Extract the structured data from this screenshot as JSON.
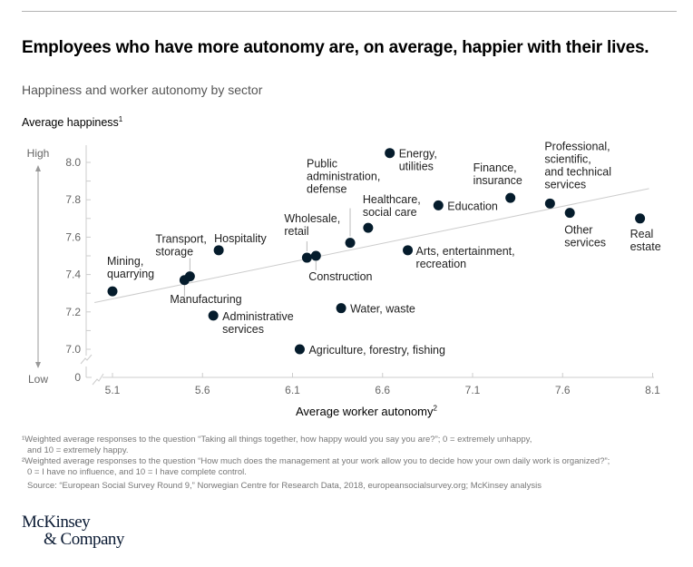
{
  "header": {
    "title": "Employees who have more autonomy are, on average, happier with their lives.",
    "subtitle": "Happiness and worker autonomy by sector"
  },
  "chart_data": {
    "type": "scatter",
    "title": "Happiness and worker autonomy by sector",
    "xlabel": "Average worker autonomy",
    "xlabel_footnote": "2",
    "ylabel": "Average happiness",
    "ylabel_footnote": "1",
    "y_scale_labels": {
      "high": "High",
      "low": "Low"
    },
    "xlim": [
      5.0,
      8.1
    ],
    "ylim": [
      6.9,
      8.1
    ],
    "x_ticks": [
      5.1,
      5.6,
      6.1,
      6.6,
      7.1,
      7.6,
      8.1
    ],
    "x_tick_labels": [
      "5.1",
      "5.6",
      "6.1",
      "6.6",
      "7.1",
      "7.6",
      "8.1"
    ],
    "y_ticks": [
      7.0,
      7.2,
      7.4,
      7.6,
      7.8,
      8.0
    ],
    "y_tick_labels": [
      "7.0",
      "7.2",
      "7.4",
      "7.6",
      "7.8",
      "8.0"
    ],
    "y_minor_ticks": [
      7.1,
      7.3,
      7.5,
      7.7,
      7.9
    ],
    "axis_break_labels": {
      "y_origin": "0"
    },
    "grid": false,
    "legend": "none",
    "trendline": {
      "x": [
        5.0,
        8.08
      ],
      "y": [
        7.25,
        7.86
      ]
    },
    "points": [
      {
        "label": [
          "Mining,",
          "quarrying"
        ],
        "x": 5.1,
        "y": 7.31
      },
      {
        "label": [
          "Manufacturing"
        ],
        "x": 5.5,
        "y": 7.37
      },
      {
        "label": [
          "Transport,",
          "storage"
        ],
        "x": 5.53,
        "y": 7.39
      },
      {
        "label": [
          "Hospitality"
        ],
        "x": 5.69,
        "y": 7.53
      },
      {
        "label": [
          "Administrative",
          "services"
        ],
        "x": 5.66,
        "y": 7.18
      },
      {
        "label": [
          "Agriculture, forestry, fishing"
        ],
        "x": 6.14,
        "y": 7.0
      },
      {
        "label": [
          "Wholesale,",
          "retail"
        ],
        "x": 6.18,
        "y": 7.49
      },
      {
        "label": [
          "Construction"
        ],
        "x": 6.23,
        "y": 7.5
      },
      {
        "label": [
          "Public",
          "administration,",
          "defense"
        ],
        "x": 6.42,
        "y": 7.57
      },
      {
        "label": [
          "Water, waste"
        ],
        "x": 6.37,
        "y": 7.22
      },
      {
        "label": [
          "Healthcare,",
          "social care"
        ],
        "x": 6.52,
        "y": 7.65
      },
      {
        "label": [
          "Energy,",
          "utilities"
        ],
        "x": 6.64,
        "y": 8.05
      },
      {
        "label": [
          "Arts, entertainment,",
          "recreation"
        ],
        "x": 6.74,
        "y": 7.53
      },
      {
        "label": [
          "Education"
        ],
        "x": 6.91,
        "y": 7.77
      },
      {
        "label": [
          "Finance,",
          "insurance"
        ],
        "x": 7.31,
        "y": 7.81
      },
      {
        "label": [
          "Professional,",
          "scientific,",
          "and technical",
          "services"
        ],
        "x": 7.53,
        "y": 7.78
      },
      {
        "label": [
          "Other",
          "services"
        ],
        "x": 7.64,
        "y": 7.73
      },
      {
        "label": [
          "Real",
          "estate"
        ],
        "x": 8.03,
        "y": 7.7
      }
    ],
    "colors": {
      "point": "#051c2c",
      "trendline": "#cccccc",
      "axis": "#cccccc"
    }
  },
  "footnotes": {
    "note1_line1": "¹Weighted average responses to the question “Taking all things together, how happy would you say you are?”; 0 = extremely unhappy,",
    "note1_line2": "and 10 = extremely happy.",
    "note2_line1": "²Weighted average responses to the question “How much does the management at your work allow you to decide how your own daily work is organized?”;",
    "note2_line2": "0 = I have no influence, and 10 = I have complete control.",
    "source": "Source: “European Social Survey Round 9,” Norwegian Centre for Research Data, 2018, europeansocialsurvey.org; McKinsey analysis"
  },
  "logo": {
    "line1": "McKinsey",
    "line2": "& Company"
  }
}
